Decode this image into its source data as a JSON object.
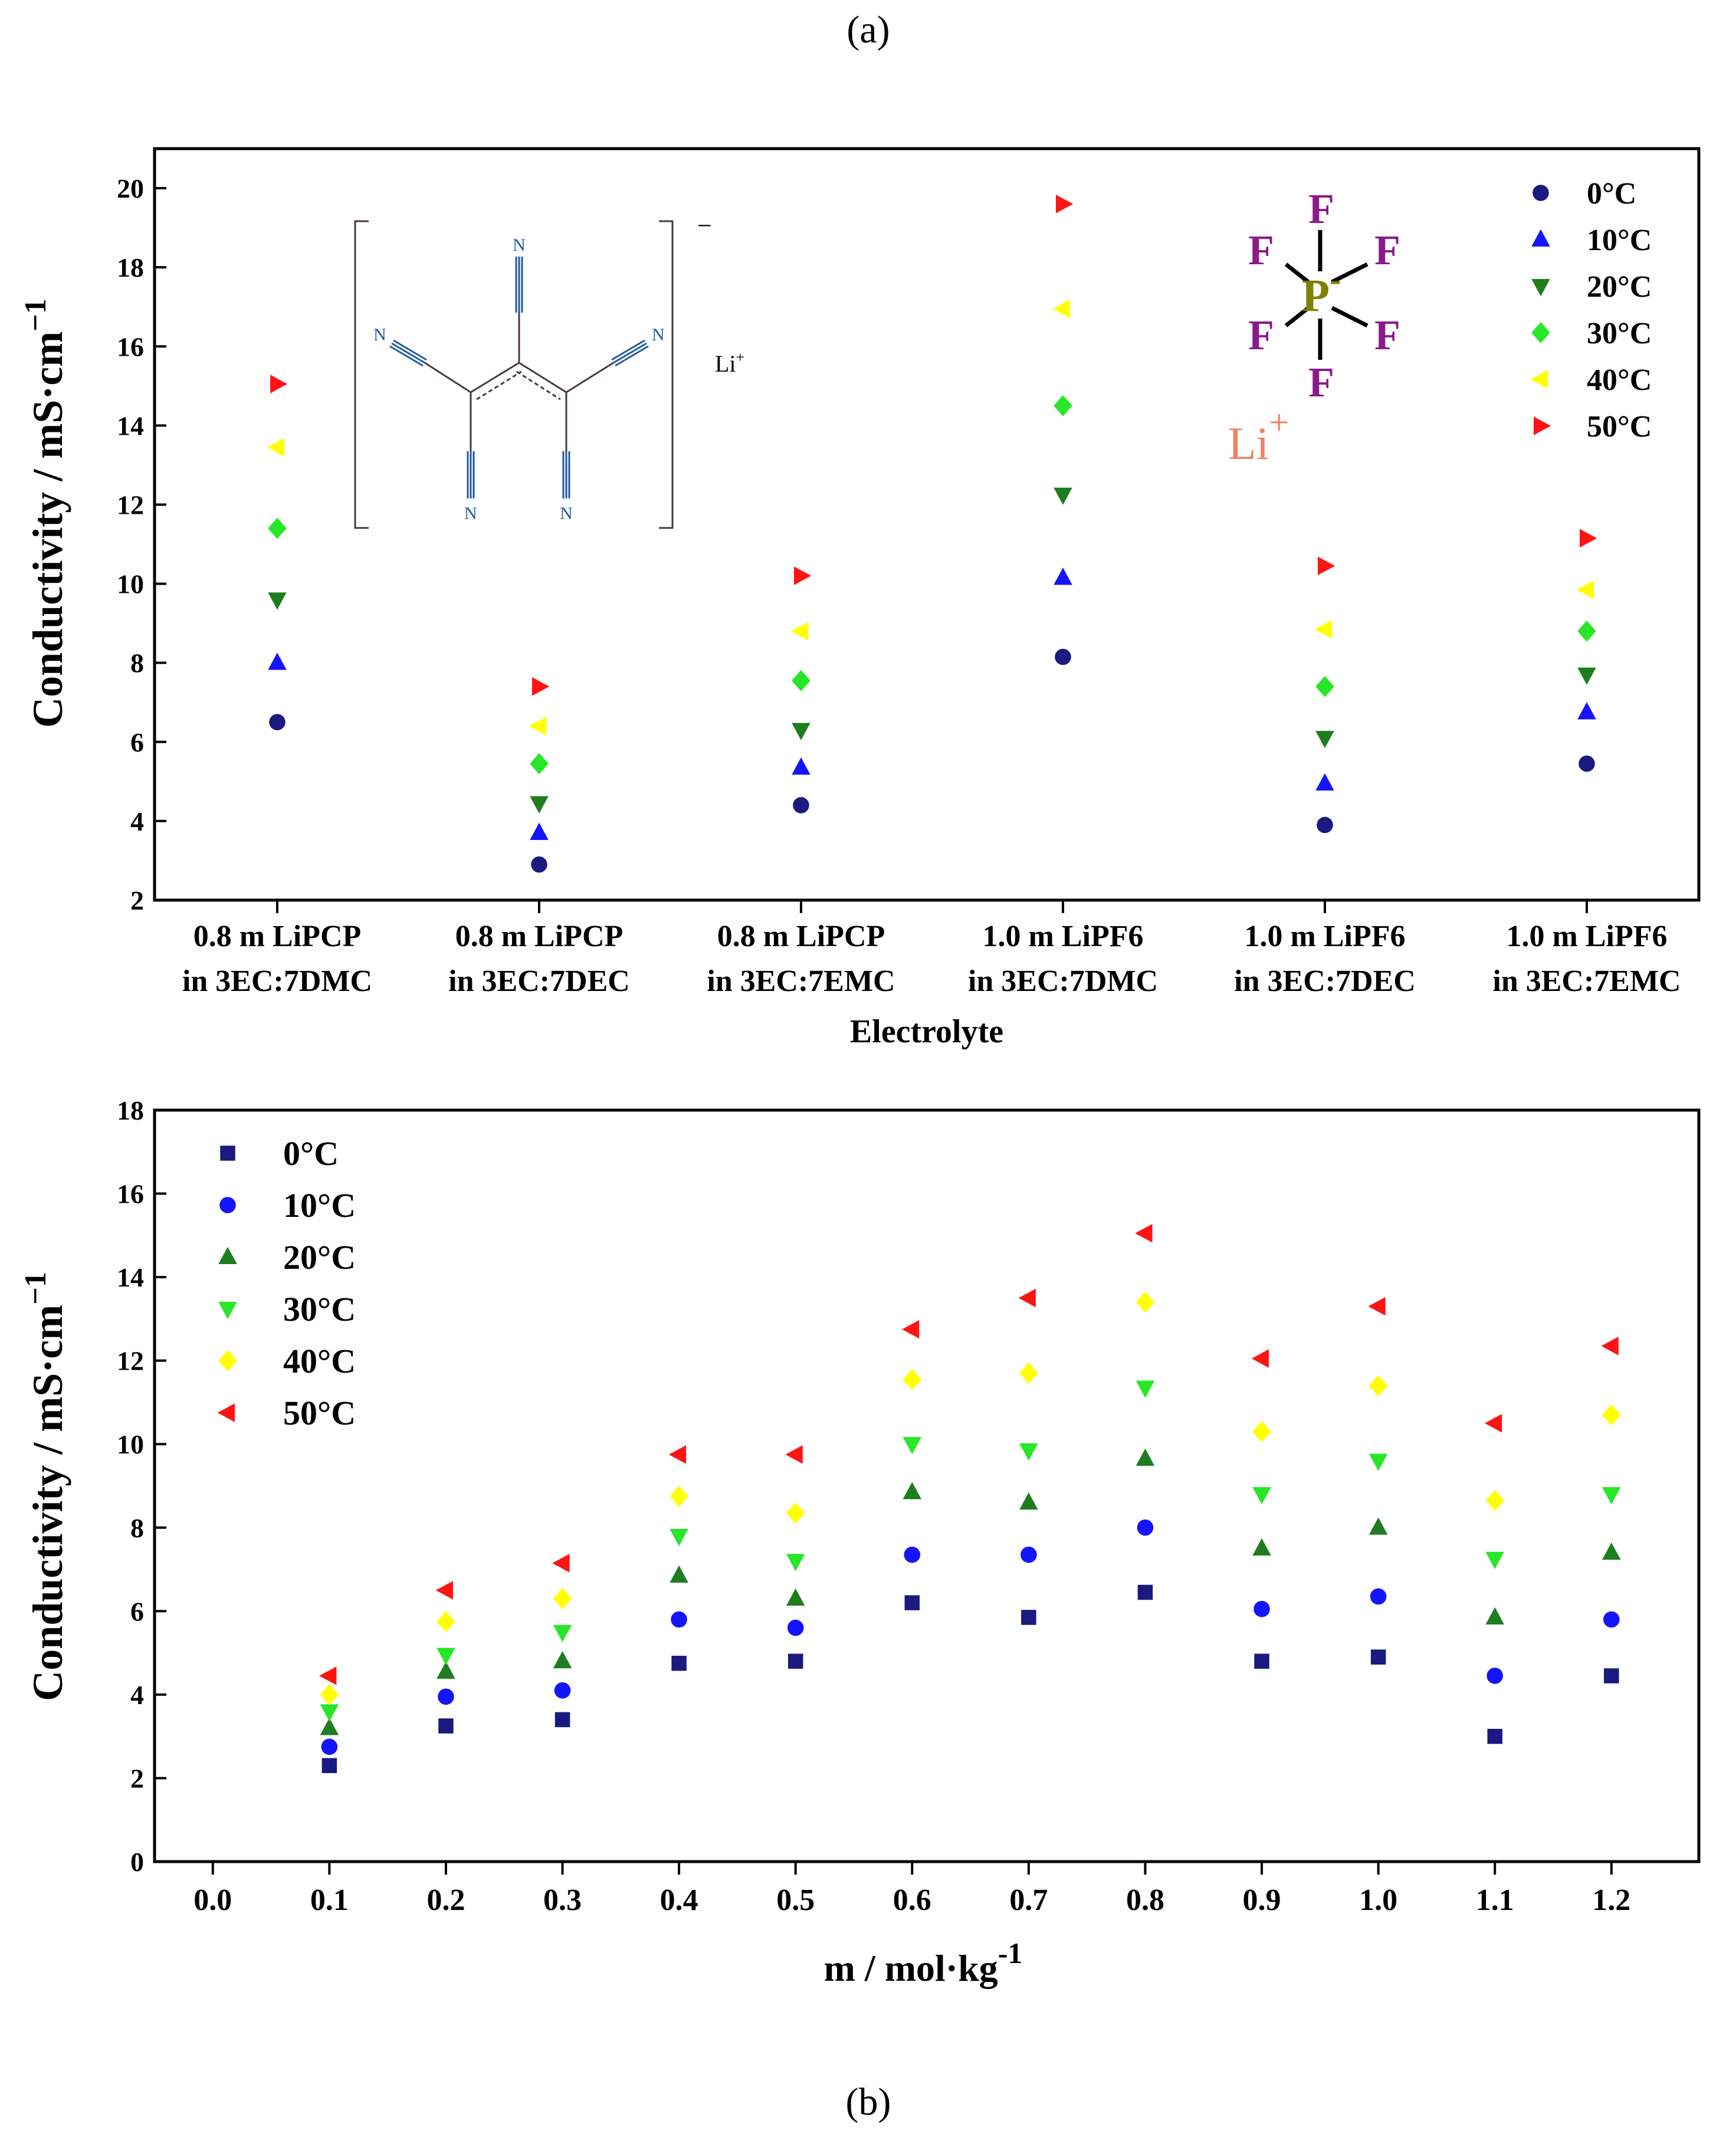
{
  "figure": {
    "panel_a_label": "(a)",
    "panel_b_label": "(b)"
  },
  "chart_data": [
    {
      "type": "scatter",
      "panel": "a",
      "title": "",
      "xlabel": "Electrolyte",
      "ylabel": "Conductivity / mS·cm",
      "ylabel_sup": "−1",
      "ylim": [
        2,
        21
      ],
      "yticks": [
        2,
        4,
        6,
        8,
        10,
        12,
        14,
        16,
        18,
        20
      ],
      "grid": false,
      "legend_position": "top-right",
      "categories": [
        {
          "line1": "0.8 m LiPCP",
          "line2": "in 3EC:7DMC"
        },
        {
          "line1": "0.8 m LiPCP",
          "line2": "in 3EC:7DEC"
        },
        {
          "line1": "0.8 m LiPCP",
          "line2": "in 3EC:7EMC"
        },
        {
          "line1": "1.0 m LiPF6",
          "line2": "in 3EC:7DMC"
        },
        {
          "line1": "1.0 m LiPF6",
          "line2": "in 3EC:7DEC"
        },
        {
          "line1": "1.0 m LiPF6",
          "line2": "in 3EC:7EMC"
        }
      ],
      "series": [
        {
          "name": "0°C",
          "marker": "circle",
          "color": "#1a1a80",
          "values": [
            6.5,
            2.9,
            4.4,
            8.15,
            3.9,
            5.45
          ]
        },
        {
          "name": "10°C",
          "marker": "triangle-up",
          "color": "#1414ff",
          "values": [
            8.0,
            3.7,
            5.35,
            10.15,
            4.95,
            6.75
          ]
        },
        {
          "name": "20°C",
          "marker": "triangle-down",
          "color": "#1e7d1e",
          "values": [
            9.6,
            4.45,
            6.3,
            12.25,
            6.1,
            7.7
          ]
        },
        {
          "name": "30°C",
          "marker": "diamond",
          "color": "#28e628",
          "values": [
            11.4,
            5.45,
            7.55,
            14.5,
            7.4,
            8.8
          ]
        },
        {
          "name": "40°C",
          "marker": "triangle-left",
          "color": "#ffff00",
          "values": [
            13.45,
            6.4,
            8.8,
            16.95,
            8.85,
            9.85
          ]
        },
        {
          "name": "50°C",
          "marker": "triangle-right",
          "color": "#ff1414",
          "values": [
            15.05,
            7.4,
            10.2,
            19.6,
            10.45,
            11.15
          ]
        }
      ],
      "insets": {
        "pcp_anion": {
          "atom_label": "N",
          "charge": "−",
          "counter_ion": "Li",
          "counter_charge": "+"
        },
        "pf6": {
          "fluorine": "F",
          "phosphorus": "P",
          "p_charge": "-",
          "lithium": "Li",
          "li_charge": "+"
        }
      }
    },
    {
      "type": "scatter",
      "panel": "b",
      "title": "",
      "xlabel": "m / mol·kg",
      "xlabel_sup": "-1",
      "ylabel": "Conductivity / mS·cm",
      "ylabel_sup": "−1",
      "xlim": [
        -0.05,
        1.275
      ],
      "ylim": [
        0,
        18
      ],
      "xticks": [
        "0.0",
        "0.1",
        "0.2",
        "0.3",
        "0.4",
        "0.5",
        "0.6",
        "0.7",
        "0.8",
        "0.9",
        "1.0",
        "1.1",
        "1.2"
      ],
      "yticks": [
        0,
        2,
        4,
        6,
        8,
        10,
        12,
        14,
        16,
        18
      ],
      "grid": false,
      "legend_position": "top-left",
      "x": [
        0.1,
        0.2,
        0.3,
        0.4,
        0.5,
        0.6,
        0.7,
        0.8,
        0.9,
        1.0,
        1.1,
        1.2
      ],
      "series": [
        {
          "name": "0°C",
          "marker": "square",
          "color": "#1a1a80",
          "values": [
            2.3,
            3.25,
            3.4,
            4.75,
            4.8,
            6.2,
            5.85,
            6.45,
            4.8,
            4.9,
            3.0,
            4.45
          ]
        },
        {
          "name": "10°C",
          "marker": "circle",
          "color": "#1414ff",
          "values": [
            2.75,
            3.95,
            4.1,
            5.8,
            5.6,
            7.35,
            7.35,
            8.0,
            6.05,
            6.35,
            4.45,
            5.8
          ]
        },
        {
          "name": "20°C",
          "marker": "triangle-up",
          "color": "#1e7d1e",
          "values": [
            3.2,
            4.55,
            4.8,
            6.85,
            6.3,
            8.85,
            8.6,
            9.65,
            7.5,
            8.0,
            5.85,
            7.4
          ]
        },
        {
          "name": "30°C",
          "marker": "triangle-down",
          "color": "#28e628",
          "values": [
            3.6,
            4.95,
            5.5,
            7.8,
            7.2,
            10.0,
            9.85,
            11.35,
            8.8,
            9.6,
            7.25,
            8.8
          ]
        },
        {
          "name": "40°C",
          "marker": "diamond",
          "color": "#ffff00",
          "values": [
            4.0,
            5.75,
            6.3,
            8.75,
            8.35,
            11.55,
            11.7,
            13.4,
            10.3,
            11.4,
            8.65,
            10.7
          ]
        },
        {
          "name": "50°C",
          "marker": "triangle-left",
          "color": "#ff1414",
          "values": [
            4.45,
            6.5,
            7.15,
            9.75,
            9.75,
            12.75,
            13.5,
            15.05,
            12.05,
            13.3,
            10.5,
            12.35
          ]
        }
      ]
    }
  ]
}
